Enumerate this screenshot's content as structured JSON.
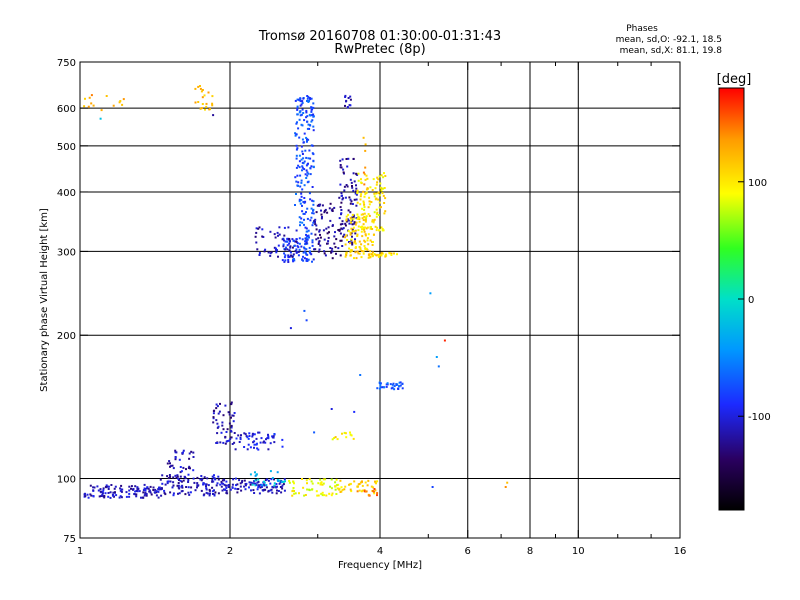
{
  "chart_data": {
    "type": "scatter",
    "title": "Tromsø 20160708 01:30:00-01:31:43",
    "subtitle": "RwPretec (8p)",
    "xlabel": "Frequency [MHz]",
    "ylabel": "Stationary phase Virtual Height [km]",
    "x_scale": "log",
    "y_scale": "log",
    "xlim": [
      1,
      16
    ],
    "ylim": [
      75,
      750
    ],
    "x_ticks": [
      1,
      2,
      4,
      6,
      8,
      10,
      16
    ],
    "x_tick_labels": [
      "1",
      "2",
      "4",
      "6",
      "8",
      "10",
      "16"
    ],
    "x_grid": [
      2,
      4,
      6,
      8,
      10
    ],
    "x_minor": [
      3,
      5,
      7,
      9,
      12,
      14
    ],
    "y_ticks": [
      75,
      100,
      200,
      300,
      400,
      500,
      600,
      750
    ],
    "y_tick_labels": [
      "75",
      "100",
      "200",
      "300",
      "400",
      "500",
      "600",
      "750"
    ],
    "y_grid": [
      100,
      200,
      300,
      400,
      500,
      600
    ],
    "grid": true,
    "colorbar": {
      "label": "[deg]",
      "range": [
        -180,
        180
      ],
      "ticks": [
        100,
        0,
        -100
      ],
      "tick_labels": [
        "100",
        "0",
        "-100"
      ]
    },
    "annotations": {
      "heading": "Phases",
      "line1": "mean, sd,O: -92.1, 18.5",
      "line2": "mean, sd,X:  81.1, 19.8"
    },
    "clusters": [
      {
        "f": [
          1.02,
          1.45
        ],
        "h": [
          91,
          97
        ],
        "phase": -110,
        "n": 130
      },
      {
        "f": [
          1.45,
          1.9
        ],
        "h": [
          92,
          102
        ],
        "phase": -112,
        "n": 110
      },
      {
        "f": [
          1.9,
          2.6
        ],
        "h": [
          93,
          100
        ],
        "phase": -108,
        "n": 110
      },
      {
        "f": [
          1.5,
          1.7
        ],
        "h": [
          100,
          115
        ],
        "phase": -112,
        "n": 35
      },
      {
        "f": [
          1.85,
          2.05
        ],
        "h": [
          118,
          145
        ],
        "phase": -115,
        "n": 55
      },
      {
        "f": [
          2.05,
          2.55
        ],
        "h": [
          115,
          125
        ],
        "phase": -100,
        "n": 55
      },
      {
        "f": [
          2.2,
          2.6
        ],
        "h": [
          96,
          104
        ],
        "phase": -20,
        "n": 25
      },
      {
        "f": [
          2.6,
          3.3
        ],
        "h": [
          92,
          100
        ],
        "phase": 90,
        "n": 60
      },
      {
        "f": [
          3.3,
          4.0
        ],
        "h": [
          93,
          99
        ],
        "phase": 110,
        "n": 40
      },
      {
        "f": [
          3.6,
          4.0
        ],
        "h": [
          92,
          96
        ],
        "phase": 150,
        "n": 12
      },
      {
        "f": [
          3.2,
          3.55
        ],
        "h": [
          120,
          125
        ],
        "phase": 100,
        "n": 12
      },
      {
        "f": [
          3.95,
          4.5
        ],
        "h": [
          154,
          160
        ],
        "phase": -70,
        "n": 35
      },
      {
        "f": [
          2.55,
          2.95
        ],
        "h": [
          285,
          320
        ],
        "phase": -85,
        "n": 90
      },
      {
        "f": [
          2.7,
          2.95
        ],
        "h": [
          320,
          640
        ],
        "phase": -75,
        "n": 200
      },
      {
        "f": [
          2.25,
          2.75
        ],
        "h": [
          290,
          340
        ],
        "phase": -110,
        "n": 60
      },
      {
        "f": [
          2.95,
          3.4
        ],
        "h": [
          290,
          380
        ],
        "phase": -125,
        "n": 80
      },
      {
        "f": [
          3.3,
          3.6
        ],
        "h": [
          310,
          470
        ],
        "phase": -120,
        "n": 90
      },
      {
        "f": [
          3.4,
          3.9
        ],
        "h": [
          290,
          360
        ],
        "phase": 108,
        "n": 110
      },
      {
        "f": [
          3.6,
          4.1
        ],
        "h": [
          330,
          440
        ],
        "phase": 100,
        "n": 110
      },
      {
        "f": [
          3.8,
          4.4
        ],
        "h": [
          292,
          298
        ],
        "phase": 110,
        "n": 25
      },
      {
        "f": [
          3.7,
          3.75
        ],
        "h": [
          400,
          530
        ],
        "phase": 130,
        "n": 8
      },
      {
        "f": [
          3.4,
          3.5
        ],
        "h": [
          600,
          645
        ],
        "phase": -110,
        "n": 12
      },
      {
        "f": [
          1.0,
          1.25
        ],
        "h": [
          590,
          640
        ],
        "phase": 130,
        "n": 14
      },
      {
        "f": [
          1.7,
          1.85
        ],
        "h": [
          590,
          670
        ],
        "phase": 120,
        "n": 22
      }
    ],
    "isolated": [
      {
        "f": 2.82,
        "h": 225,
        "phase": -70
      },
      {
        "f": 2.85,
        "h": 215,
        "phase": -80
      },
      {
        "f": 2.65,
        "h": 207,
        "phase": -100
      },
      {
        "f": 5.05,
        "h": 245,
        "phase": -40
      },
      {
        "f": 5.4,
        "h": 195,
        "phase": 170
      },
      {
        "f": 5.2,
        "h": 180,
        "phase": -40
      },
      {
        "f": 5.25,
        "h": 172,
        "phase": -60
      },
      {
        "f": 5.1,
        "h": 96,
        "phase": -80
      },
      {
        "f": 7.15,
        "h": 96,
        "phase": 140
      },
      {
        "f": 7.2,
        "h": 98,
        "phase": 120
      },
      {
        "f": 3.2,
        "h": 140,
        "phase": -100
      },
      {
        "f": 3.55,
        "h": 138,
        "phase": -90
      },
      {
        "f": 2.95,
        "h": 125,
        "phase": -70
      },
      {
        "f": 1.1,
        "h": 570,
        "phase": -20
      },
      {
        "f": 1.85,
        "h": 580,
        "phase": -120
      },
      {
        "f": 3.65,
        "h": 165,
        "phase": -60
      }
    ]
  }
}
